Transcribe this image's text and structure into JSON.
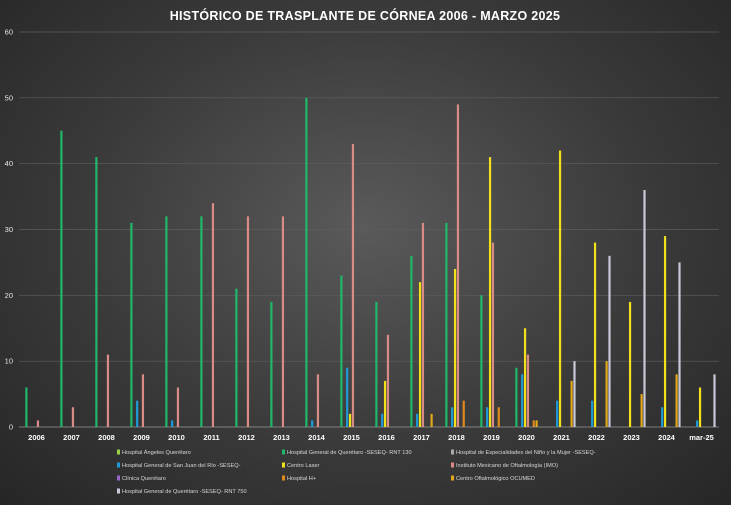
{
  "chart_data": {
    "type": "bar",
    "title": "HISTÓRICO DE TRASPLANTE DE CÓRNEA 2006 - MARZO 2025",
    "xlabel": "",
    "ylabel": "",
    "ylim": [
      0,
      60
    ],
    "yticks": [
      0,
      10,
      20,
      30,
      40,
      50,
      60
    ],
    "grid": true,
    "legend_position": "bottom",
    "categories": [
      "2006",
      "2007",
      "2008",
      "2009",
      "2010",
      "2011",
      "2012",
      "2013",
      "2014",
      "2015",
      "2016",
      "2017",
      "2018",
      "2019",
      "2020",
      "2021",
      "2022",
      "2023",
      "2024",
      "mar-25"
    ],
    "series": [
      {
        "name": "Hospital Ángeles Querétaro",
        "color": "#9bd14a",
        "values": [
          0,
          0,
          0,
          0,
          0,
          0,
          0,
          0,
          0,
          0,
          0,
          0,
          0,
          0,
          0,
          0,
          0,
          0,
          0,
          0
        ]
      },
      {
        "name": "Hospital General de Querétaro -SESEQ- RNT 130",
        "color": "#1fb86a",
        "values": [
          6,
          45,
          41,
          31,
          32,
          32,
          21,
          19,
          50,
          23,
          19,
          26,
          31,
          20,
          9,
          0,
          0,
          0,
          0,
          0
        ]
      },
      {
        "name": "Hospital de Especialidades del Niño y la Mujer -SESEQ-",
        "color": "#a9a9a9",
        "values": [
          0,
          0,
          0,
          0,
          0,
          0,
          0,
          0,
          0,
          0,
          0,
          0,
          0,
          0,
          0,
          0,
          0,
          0,
          0,
          0
        ]
      },
      {
        "name": "Hospital General de San Juan del Río -SESEQ-",
        "color": "#1f9ad6",
        "values": [
          0,
          0,
          0,
          4,
          1,
          0,
          0,
          0,
          1,
          9,
          2,
          2,
          3,
          3,
          8,
          4,
          4,
          0,
          3,
          1
        ]
      },
      {
        "name": "Centro Laser",
        "color": "#f2e01a",
        "values": [
          0,
          0,
          0,
          0,
          0,
          0,
          0,
          0,
          0,
          2,
          7,
          22,
          24,
          41,
          15,
          42,
          28,
          19,
          29,
          6
        ]
      },
      {
        "name": "Instituto Mexicano de Oftalmología (IMO)",
        "color": "#d98b86",
        "values": [
          1,
          3,
          11,
          8,
          6,
          34,
          32,
          32,
          8,
          43,
          14,
          31,
          49,
          28,
          11,
          0,
          0,
          0,
          0,
          0
        ]
      },
      {
        "name": "Clínica Querétaro",
        "color": "#9966cc",
        "values": [
          0,
          0,
          0,
          0,
          0,
          0,
          0,
          0,
          0,
          0,
          0,
          0,
          0,
          0,
          0,
          0,
          0,
          0,
          0,
          0
        ]
      },
      {
        "name": "Hospital H+",
        "color": "#e08a1e",
        "values": [
          0,
          0,
          0,
          0,
          0,
          0,
          0,
          0,
          0,
          0,
          0,
          0,
          4,
          3,
          1,
          0,
          0,
          0,
          0,
          0
        ]
      },
      {
        "name": "Centro Oftalmológico OCUMED",
        "color": "#e0a81a",
        "values": [
          0,
          0,
          0,
          0,
          0,
          0,
          0,
          0,
          0,
          0,
          0,
          2,
          0,
          0,
          1,
          7,
          10,
          5,
          8,
          0
        ]
      },
      {
        "name": "Hospital General de Querétaro -SESEQ- RNT 750",
        "color": "#c8c8d8",
        "values": [
          0,
          0,
          0,
          0,
          0,
          0,
          0,
          0,
          0,
          0,
          0,
          0,
          0,
          0,
          0,
          10,
          26,
          36,
          25,
          8
        ]
      }
    ]
  }
}
